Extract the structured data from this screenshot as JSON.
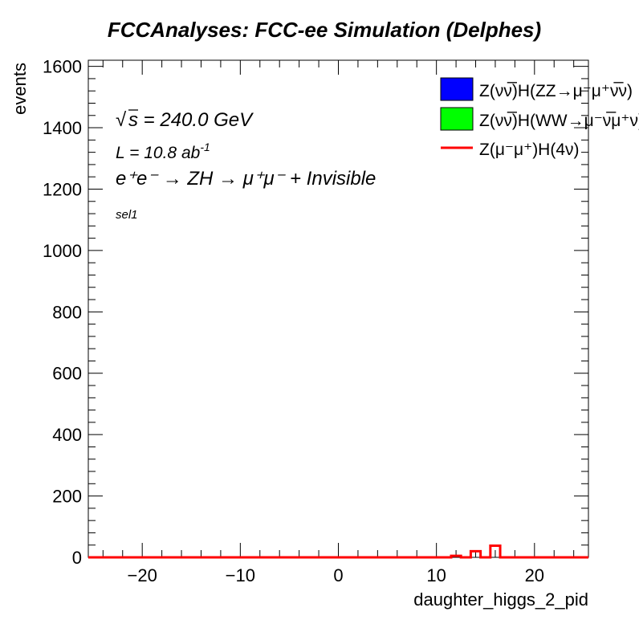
{
  "chart_data": {
    "type": "histogram",
    "title": "FCCAnalyses: FCC-ee Simulation (Delphes)",
    "xlabel": "daughter_higgs_2_pid",
    "ylabel": "events",
    "xlim": [
      -25.5,
      25.5
    ],
    "ylim": [
      0,
      1620
    ],
    "xticks": [
      -20,
      -10,
      0,
      10,
      20
    ],
    "xtick_labels": [
      "−20",
      "−10",
      "0",
      "10",
      "20"
    ],
    "yticks": [
      0,
      200,
      400,
      600,
      800,
      1000,
      1200,
      1400,
      1600
    ],
    "ytick_labels": [
      "0",
      "200",
      "400",
      "600",
      "800",
      "1000",
      "1200",
      "1400",
      "1600"
    ],
    "grid": false,
    "legend_position": "top-right",
    "annotations": {
      "energy": "s = 240.0 GeV",
      "lumi_base": "L = 10.8 ab",
      "lumi_exp": "-1",
      "process": "e⁺e⁻ → ZH → μ⁺μ⁻ + Invisible",
      "selection": "sel1"
    },
    "series": [
      {
        "name": "Z(νν̅)H(ZZ→μ⁻μ⁺ν̅ν)",
        "style": "filled",
        "color": "#0000ff",
        "bins": []
      },
      {
        "name": "Z(νν̅)H(WW→μ⁻ν̅μ⁺ν)",
        "style": "filled",
        "color": "#00ff00",
        "bins": []
      },
      {
        "name": "Z(μ⁻μ⁺)H(4ν)",
        "style": "line",
        "color": "#ff0000",
        "bins": [
          {
            "x": [
              11.5,
              12.5
            ],
            "y": 5
          },
          {
            "x": [
              13.5,
              14.5
            ],
            "y": 20
          },
          {
            "x": [
              15.5,
              16.5
            ],
            "y": 38
          }
        ]
      }
    ]
  }
}
